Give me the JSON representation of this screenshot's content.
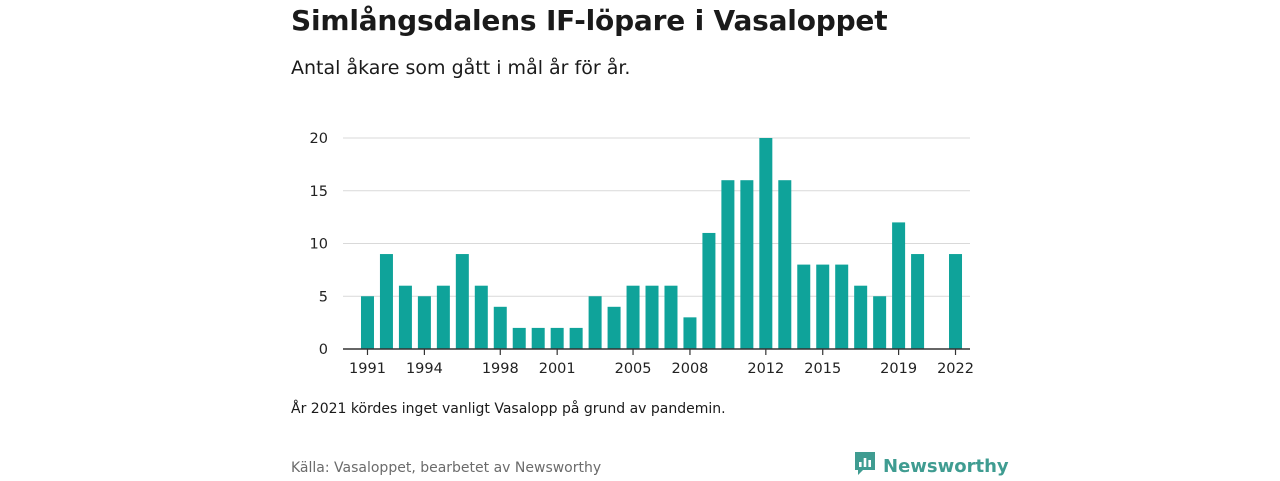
{
  "header": {
    "title": "Simlångsdalens IF-löpare i Vasaloppet",
    "subtitle": "Antal åkare som gått i mål år för år."
  },
  "footer": {
    "note": "År 2021 kördes inget vanligt Vasalopp på grund av pandemin.",
    "source": "Källa: Vasaloppet, bearbetet av Newsworthy",
    "brand": "Newsworthy",
    "brand_icon": "bar-chart-speech-bubble-icon"
  },
  "colors": {
    "bar": "#0fa39a",
    "grid": "#d9d9d9",
    "axis": "#333333",
    "brand": "#3f9c91"
  },
  "chart_data": {
    "type": "bar",
    "title": "Simlångsdalens IF-löpare i Vasaloppet",
    "subtitle": "Antal åkare som gått i mål år för år.",
    "xlabel": "",
    "ylabel": "",
    "categories": [
      1991,
      1992,
      1993,
      1994,
      1995,
      1996,
      1997,
      1998,
      1999,
      2000,
      2001,
      2002,
      2003,
      2004,
      2005,
      2006,
      2007,
      2008,
      2009,
      2010,
      2011,
      2012,
      2013,
      2014,
      2015,
      2016,
      2017,
      2018,
      2019,
      2020,
      2021,
      2022
    ],
    "values": [
      5,
      9,
      6,
      5,
      6,
      9,
      6,
      4,
      2,
      2,
      2,
      2,
      5,
      4,
      6,
      6,
      6,
      3,
      11,
      16,
      16,
      20,
      16,
      8,
      8,
      8,
      6,
      5,
      12,
      9,
      null,
      9
    ],
    "x_tick_labels": [
      "1991",
      "1994",
      "1998",
      "2001",
      "2005",
      "2008",
      "2012",
      "2015",
      "2019",
      "2022"
    ],
    "y_ticks": [
      0,
      5,
      10,
      15,
      20
    ],
    "ylim": [
      0,
      20
    ],
    "grid": true,
    "legend": "none"
  }
}
